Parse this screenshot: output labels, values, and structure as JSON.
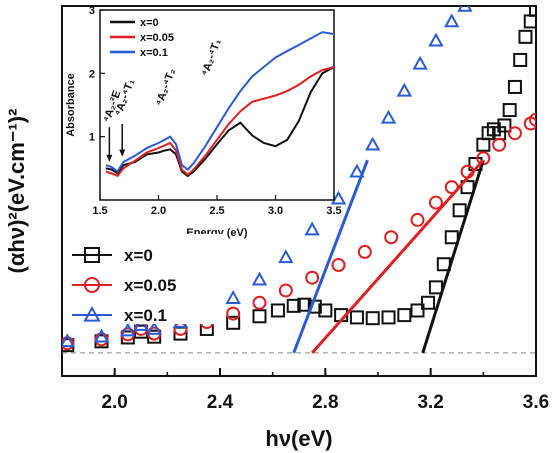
{
  "chart_data": [
    {
      "type": "scatter",
      "title": "",
      "xlabel": "hν(eV)",
      "ylabel": "(αhν)²(eV.cm⁻¹)²",
      "xlim": [
        1.8,
        3.6
      ],
      "ylim": [
        -0.6,
        9.0
      ],
      "x_ticks": [
        "2.0",
        "2.4",
        "2.8",
        "3.2",
        "3.6"
      ],
      "x_tick_values": [
        2.0,
        2.4,
        2.8,
        3.2,
        3.6
      ],
      "legend_placement": "left",
      "baseline": 0.0,
      "series": [
        {
          "name": "x=0",
          "marker": "square",
          "color": "#111111",
          "x": [
            1.82,
            1.95,
            2.05,
            2.1,
            2.15,
            2.25,
            2.35,
            2.45,
            2.55,
            2.62,
            2.68,
            2.72,
            2.76,
            2.8,
            2.86,
            2.92,
            2.98,
            3.04,
            3.1,
            3.15,
            3.19,
            3.22,
            3.25,
            3.28,
            3.31,
            3.34,
            3.37,
            3.4,
            3.42,
            3.44,
            3.46,
            3.48,
            3.5,
            3.52,
            3.54,
            3.56,
            3.58,
            3.6
          ],
          "y": [
            0.2,
            0.3,
            0.4,
            0.55,
            0.42,
            0.5,
            0.62,
            0.78,
            0.95,
            1.1,
            1.22,
            1.25,
            1.2,
            1.1,
            0.98,
            0.92,
            0.9,
            0.92,
            0.98,
            1.1,
            1.3,
            1.7,
            2.3,
            3.0,
            3.7,
            4.3,
            4.9,
            5.4,
            5.7,
            5.8,
            5.7,
            5.9,
            6.3,
            6.9,
            7.6,
            8.2,
            8.6,
            8.9
          ],
          "fit_x": [
            3.17,
            3.4
          ],
          "fit_y": [
            0.0,
            5.0
          ]
        },
        {
          "name": "x=0.05",
          "marker": "circle",
          "color": "#e02020",
          "x": [
            1.82,
            1.95,
            2.05,
            2.1,
            2.15,
            2.25,
            2.35,
            2.45,
            2.55,
            2.65,
            2.75,
            2.85,
            2.95,
            3.05,
            3.15,
            3.22,
            3.28,
            3.34,
            3.4,
            3.46,
            3.52,
            3.58,
            3.6
          ],
          "y": [
            0.25,
            0.35,
            0.48,
            0.62,
            0.5,
            0.62,
            0.8,
            1.02,
            1.3,
            1.62,
            1.95,
            2.28,
            2.62,
            3.0,
            3.45,
            3.9,
            4.3,
            4.7,
            5.05,
            5.4,
            5.7,
            5.95,
            6.05
          ],
          "fit_x": [
            2.75,
            3.4
          ],
          "fit_y": [
            0.0,
            5.0
          ]
        },
        {
          "name": "x=0.1",
          "marker": "triangle",
          "color": "#2a5bd7",
          "x": [
            1.82,
            1.95,
            2.05,
            2.1,
            2.15,
            2.25,
            2.35,
            2.45,
            2.55,
            2.65,
            2.75,
            2.85,
            2.92,
            2.98,
            3.04,
            3.1,
            3.16,
            3.22,
            3.28,
            3.33
          ],
          "y": [
            0.3,
            0.42,
            0.58,
            0.72,
            0.62,
            0.8,
            1.05,
            1.42,
            1.9,
            2.48,
            3.2,
            4.0,
            4.7,
            5.4,
            6.1,
            6.8,
            7.5,
            8.1,
            8.6,
            9.0
          ],
          "fit_x": [
            2.68,
            2.96
          ],
          "fit_y": [
            0.0,
            5.0
          ]
        }
      ]
    },
    {
      "type": "line",
      "title": "",
      "xlabel": "Energy (eV)",
      "ylabel": "Absorbance",
      "xlim": [
        1.5,
        3.5
      ],
      "ylim": [
        0,
        3
      ],
      "x_ticks": [
        "1.5",
        "2.0",
        "2.5",
        "3.0",
        "3.5"
      ],
      "x_tick_values": [
        1.5,
        2.0,
        2.5,
        3.0,
        3.5
      ],
      "y_ticks": [
        "1",
        "2",
        "3"
      ],
      "y_tick_values": [
        1,
        2,
        3
      ],
      "legend_placement": "top-left",
      "annotations": [
        {
          "text": "⁴A₂-²E",
          "x": 1.58,
          "y": 1.12
        },
        {
          "text": "⁴A₂-⁴T₁",
          "x": 1.68,
          "y": 1.22
        },
        {
          "text": "⁴A₂-⁴T₂",
          "x": 2.03,
          "y": 1.38
        },
        {
          "text": "⁴A₂-⁴T₁",
          "x": 2.42,
          "y": 1.85
        }
      ],
      "series": [
        {
          "name": "x=0",
          "color": "#111111",
          "x": [
            1.55,
            1.6,
            1.65,
            1.7,
            1.8,
            1.9,
            2.0,
            2.05,
            2.1,
            2.15,
            2.2,
            2.25,
            2.3,
            2.4,
            2.5,
            2.6,
            2.7,
            2.8,
            2.9,
            3.0,
            3.1,
            3.2,
            3.3,
            3.4,
            3.5
          ],
          "y": [
            0.5,
            0.48,
            0.42,
            0.55,
            0.6,
            0.72,
            0.75,
            0.78,
            0.8,
            0.72,
            0.45,
            0.38,
            0.45,
            0.65,
            0.88,
            1.1,
            1.22,
            1.02,
            0.9,
            0.85,
            0.95,
            1.25,
            1.7,
            2.0,
            2.1
          ]
        },
        {
          "name": "x=0.05",
          "color": "#e02020",
          "x": [
            1.55,
            1.6,
            1.65,
            1.7,
            1.8,
            1.9,
            2.0,
            2.05,
            2.1,
            2.15,
            2.2,
            2.25,
            2.3,
            2.4,
            2.5,
            2.6,
            2.7,
            2.8,
            2.9,
            3.0,
            3.1,
            3.2,
            3.3,
            3.4,
            3.5
          ],
          "y": [
            0.45,
            0.42,
            0.38,
            0.5,
            0.62,
            0.75,
            0.82,
            0.86,
            0.9,
            0.78,
            0.48,
            0.4,
            0.48,
            0.7,
            0.95,
            1.2,
            1.4,
            1.55,
            1.6,
            1.65,
            1.72,
            1.82,
            1.95,
            2.05,
            2.1
          ]
        },
        {
          "name": "x=0.1",
          "color": "#2a5bd7",
          "x": [
            1.55,
            1.6,
            1.65,
            1.7,
            1.8,
            1.9,
            2.0,
            2.05,
            2.1,
            2.15,
            2.2,
            2.25,
            2.3,
            2.4,
            2.5,
            2.6,
            2.7,
            2.8,
            2.9,
            3.0,
            3.1,
            3.2,
            3.3,
            3.4,
            3.5
          ],
          "y": [
            0.55,
            0.52,
            0.45,
            0.6,
            0.7,
            0.82,
            0.9,
            0.95,
            1.0,
            0.88,
            0.55,
            0.48,
            0.58,
            0.85,
            1.15,
            1.45,
            1.72,
            1.95,
            2.1,
            2.25,
            2.35,
            2.45,
            2.55,
            2.65,
            2.62
          ]
        }
      ]
    }
  ]
}
